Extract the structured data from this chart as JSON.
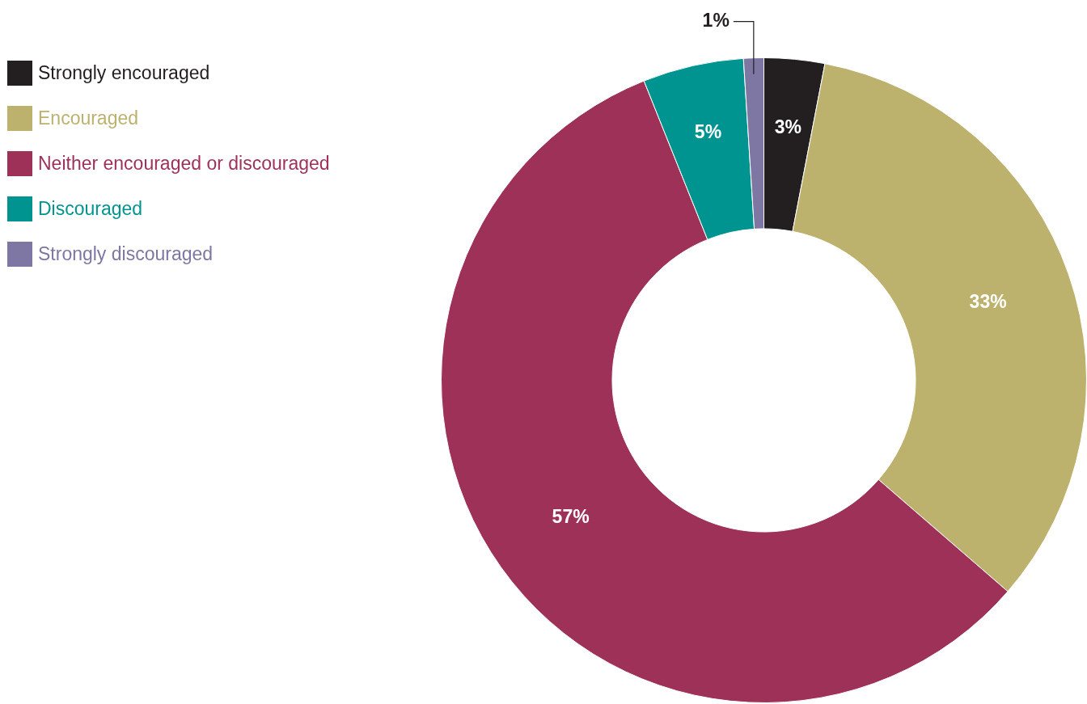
{
  "chart_data": {
    "type": "donut",
    "categories": [
      "Strongly encouraged",
      "Encouraged",
      "Neither encouraged or discouraged",
      "Discouraged",
      "Strongly discouraged"
    ],
    "values": [
      3,
      33,
      57,
      5,
      1
    ],
    "colors": [
      "#231f20",
      "#bcb26e",
      "#9e3158",
      "#009490",
      "#7f77a3"
    ],
    "value_labels": [
      "3%",
      "33%",
      "57%",
      "5%",
      "1%"
    ],
    "legend": "top left"
  }
}
